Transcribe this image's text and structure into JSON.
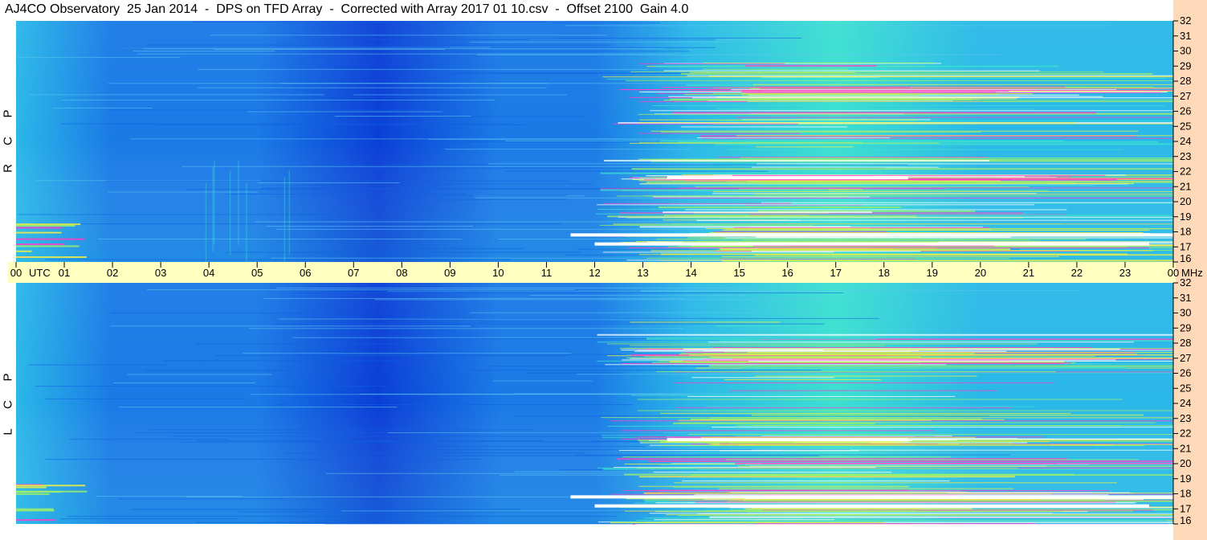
{
  "title": "AJ4CO Observatory  25 Jan 2014  -  DPS on TFD Array  -  Corrected with Array 2017 01 10.csv  -  Offset 2100  Gain 4.0",
  "chart_data": {
    "type": "heatmap",
    "panels": [
      {
        "name": "RCP",
        "letters": [
          "R",
          "C",
          "P"
        ]
      },
      {
        "name": "LCP",
        "letters": [
          "L",
          "C",
          "P"
        ]
      }
    ],
    "x_axis": {
      "labels": [
        "00",
        "01",
        "02",
        "03",
        "04",
        "05",
        "06",
        "07",
        "08",
        "09",
        "10",
        "11",
        "12",
        "13",
        "14",
        "15",
        "16",
        "17",
        "18",
        "19",
        "20",
        "21",
        "22",
        "23",
        "00"
      ],
      "unit_label": "UTC",
      "range": [
        0,
        24
      ]
    },
    "y_axis": {
      "labels": [
        "32",
        "31",
        "30",
        "29",
        "28",
        "27",
        "26",
        "25",
        "24",
        "23",
        "22",
        "21",
        "20",
        "19",
        "18",
        "17",
        "16"
      ],
      "unit_label": "MHz",
      "range": [
        16,
        32
      ]
    },
    "colors": {
      "deep": "#0a3fd6",
      "base": "#1a7ae6",
      "mid": "#2ab8e8",
      "cyan": "#3ce0d0",
      "green": "#9ef06a",
      "yellow": "#f0f040",
      "magenta": "#ff40c8",
      "axis_bar": "#ffffc0",
      "right_strip": "#ffd9b8"
    },
    "activity_hours": {
      "low_start": 5,
      "deep_center": 7.5,
      "rise_start": 12,
      "high": 14
    }
  }
}
